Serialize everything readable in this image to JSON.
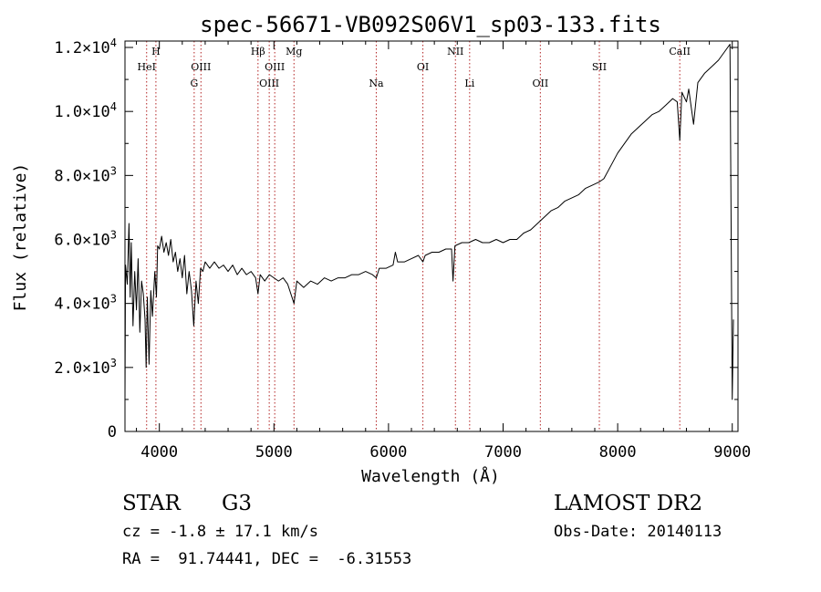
{
  "chart_data": {
    "type": "line",
    "title": "spec-56671-VB092S06V1_sp03-133.fits",
    "xlabel": "Wavelength (Å)",
    "ylabel": "Flux (relative)",
    "xlim": [
      3700,
      9050
    ],
    "ylim": [
      0,
      12200
    ],
    "x_ticks": [
      4000,
      5000,
      6000,
      7000,
      8000,
      9000
    ],
    "y_ticks": [
      {
        "value": 0,
        "base": "0",
        "exp": ""
      },
      {
        "value": 2000,
        "base": "2.0×10",
        "exp": "3"
      },
      {
        "value": 4000,
        "base": "4.0×10",
        "exp": "3"
      },
      {
        "value": 6000,
        "base": "6.0×10",
        "exp": "3"
      },
      {
        "value": 8000,
        "base": "8.0×10",
        "exp": "3"
      },
      {
        "value": 10000,
        "base": "1.0×10",
        "exp": "4"
      },
      {
        "value": 12000,
        "base": "1.2×10",
        "exp": "4"
      }
    ],
    "lines": [
      {
        "name": "H",
        "x": 3970,
        "row": 0
      },
      {
        "name": "HeI",
        "x": 3889,
        "row": 1
      },
      {
        "name": "OIII",
        "x": 4363,
        "row": 1
      },
      {
        "name": "G",
        "x": 4304,
        "row": 2
      },
      {
        "name": "Hβ",
        "x": 4861,
        "row": 0
      },
      {
        "name": "OIII",
        "x": 5007,
        "row": 1
      },
      {
        "name": "OIII",
        "x": 4959,
        "row": 2
      },
      {
        "name": "Mg",
        "x": 5175,
        "row": 0
      },
      {
        "name": "Na",
        "x": 5893,
        "row": 2
      },
      {
        "name": "OI",
        "x": 6300,
        "row": 1
      },
      {
        "name": "NII",
        "x": 6584,
        "row": 0
      },
      {
        "name": "Li",
        "x": 6708,
        "row": 2
      },
      {
        "name": "OII",
        "x": 7325,
        "row": 2
      },
      {
        "name": "SII",
        "x": 7840,
        "row": 1
      },
      {
        "name": "CaII",
        "x": 8542,
        "row": 0
      }
    ],
    "series": [
      {
        "color": "#000000",
        "points": [
          [
            3700,
            1000
          ],
          [
            3705,
            5200
          ],
          [
            3720,
            4600
          ],
          [
            3735,
            6500
          ],
          [
            3745,
            4200
          ],
          [
            3755,
            5900
          ],
          [
            3770,
            3300
          ],
          [
            3785,
            5000
          ],
          [
            3800,
            3800
          ],
          [
            3815,
            5400
          ],
          [
            3830,
            3100
          ],
          [
            3845,
            4700
          ],
          [
            3860,
            4300
          ],
          [
            3875,
            3500
          ],
          [
            3885,
            2000
          ],
          [
            3895,
            4200
          ],
          [
            3910,
            2100
          ],
          [
            3925,
            4400
          ],
          [
            3940,
            3600
          ],
          [
            3960,
            5000
          ],
          [
            3975,
            4200
          ],
          [
            3985,
            5800
          ],
          [
            4000,
            5700
          ],
          [
            4020,
            6100
          ],
          [
            4040,
            5600
          ],
          [
            4060,
            5900
          ],
          [
            4080,
            5500
          ],
          [
            4100,
            6000
          ],
          [
            4120,
            5300
          ],
          [
            4140,
            5600
          ],
          [
            4160,
            5000
          ],
          [
            4180,
            5400
          ],
          [
            4200,
            4800
          ],
          [
            4220,
            5500
          ],
          [
            4240,
            4300
          ],
          [
            4260,
            5000
          ],
          [
            4280,
            4400
          ],
          [
            4300,
            3300
          ],
          [
            4320,
            4700
          ],
          [
            4340,
            4000
          ],
          [
            4360,
            5100
          ],
          [
            4380,
            5000
          ],
          [
            4400,
            5300
          ],
          [
            4440,
            5100
          ],
          [
            4480,
            5300
          ],
          [
            4520,
            5100
          ],
          [
            4560,
            5200
          ],
          [
            4600,
            5000
          ],
          [
            4640,
            5200
          ],
          [
            4680,
            4900
          ],
          [
            4720,
            5100
          ],
          [
            4760,
            4900
          ],
          [
            4800,
            5000
          ],
          [
            4840,
            4800
          ],
          [
            4861,
            4300
          ],
          [
            4880,
            4900
          ],
          [
            4920,
            4700
          ],
          [
            4960,
            4900
          ],
          [
            5000,
            4800
          ],
          [
            5040,
            4700
          ],
          [
            5080,
            4800
          ],
          [
            5120,
            4600
          ],
          [
            5175,
            4000
          ],
          [
            5200,
            4700
          ],
          [
            5260,
            4500
          ],
          [
            5320,
            4700
          ],
          [
            5380,
            4600
          ],
          [
            5440,
            4800
          ],
          [
            5500,
            4700
          ],
          [
            5560,
            4800
          ],
          [
            5620,
            4800
          ],
          [
            5680,
            4900
          ],
          [
            5740,
            4900
          ],
          [
            5800,
            5000
          ],
          [
            5860,
            4900
          ],
          [
            5893,
            4800
          ],
          [
            5920,
            5100
          ],
          [
            5980,
            5100
          ],
          [
            6040,
            5200
          ],
          [
            6060,
            5600
          ],
          [
            6080,
            5300
          ],
          [
            6140,
            5300
          ],
          [
            6200,
            5400
          ],
          [
            6260,
            5500
          ],
          [
            6300,
            5300
          ],
          [
            6320,
            5500
          ],
          [
            6380,
            5600
          ],
          [
            6440,
            5600
          ],
          [
            6500,
            5700
          ],
          [
            6550,
            5700
          ],
          [
            6563,
            4700
          ],
          [
            6580,
            5800
          ],
          [
            6640,
            5900
          ],
          [
            6700,
            5900
          ],
          [
            6760,
            6000
          ],
          [
            6820,
            5900
          ],
          [
            6880,
            5900
          ],
          [
            6940,
            6000
          ],
          [
            7000,
            5900
          ],
          [
            7060,
            6000
          ],
          [
            7120,
            6000
          ],
          [
            7180,
            6200
          ],
          [
            7240,
            6300
          ],
          [
            7300,
            6500
          ],
          [
            7360,
            6700
          ],
          [
            7420,
            6900
          ],
          [
            7480,
            7000
          ],
          [
            7540,
            7200
          ],
          [
            7600,
            7300
          ],
          [
            7660,
            7400
          ],
          [
            7720,
            7600
          ],
          [
            7780,
            7700
          ],
          [
            7840,
            7800
          ],
          [
            7880,
            7900
          ],
          [
            7940,
            8300
          ],
          [
            8000,
            8700
          ],
          [
            8060,
            9000
          ],
          [
            8120,
            9300
          ],
          [
            8180,
            9500
          ],
          [
            8240,
            9700
          ],
          [
            8300,
            9900
          ],
          [
            8360,
            10000
          ],
          [
            8420,
            10200
          ],
          [
            8480,
            10400
          ],
          [
            8520,
            10300
          ],
          [
            8542,
            9100
          ],
          [
            8560,
            10600
          ],
          [
            8600,
            10300
          ],
          [
            8620,
            10700
          ],
          [
            8662,
            9600
          ],
          [
            8700,
            10900
          ],
          [
            8760,
            11200
          ],
          [
            8820,
            11400
          ],
          [
            8880,
            11600
          ],
          [
            8940,
            11900
          ],
          [
            8980,
            12100
          ],
          [
            9000,
            1000
          ],
          [
            9010,
            3500
          ]
        ]
      }
    ]
  },
  "info": {
    "object_class": "STAR",
    "subclass": "G3",
    "redshift": "cz = -1.8 ± 17.1 km/s",
    "coords": "RA =  91.74441, DEC =  -6.31553",
    "survey": "LAMOST DR2",
    "obs_date": "Obs-Date: 20140113"
  }
}
